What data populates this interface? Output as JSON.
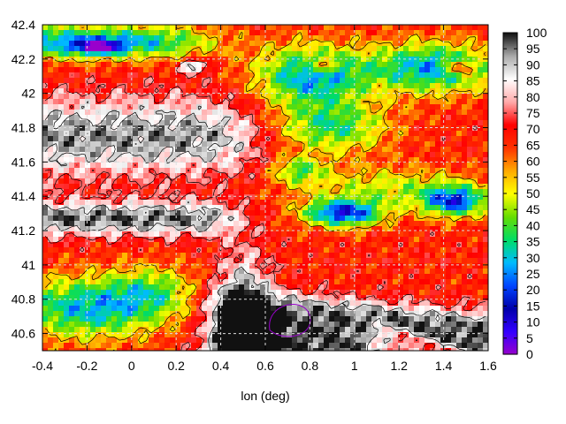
{
  "chart_data": {
    "type": "heatmap",
    "title": "",
    "xlabel": "lon (deg)",
    "ylabel": "",
    "xlim": [
      -0.4,
      1.6
    ],
    "ylim": [
      40.5,
      42.4
    ],
    "x_ticks": [
      "-0.4",
      "-0.2",
      "0",
      "0.2",
      "0.4",
      "0.6",
      "0.8",
      "1",
      "1.2",
      "1.4",
      "1.6"
    ],
    "y_ticks": [
      "40.6",
      "40.8",
      "41",
      "41.2",
      "41.4",
      "41.6",
      "41.8",
      "42",
      "42.2",
      "42.4"
    ],
    "grid": true,
    "colorbar": {
      "range": [
        0,
        100
      ],
      "ticks": [
        "0",
        "5",
        "10",
        "15",
        "20",
        "25",
        "30",
        "35",
        "40",
        "45",
        "50",
        "55",
        "60",
        "65",
        "70",
        "75",
        "80",
        "85",
        "90",
        "95",
        "100"
      ],
      "colors": [
        "#9900cc",
        "#3300ff",
        "#0000aa",
        "#0044ff",
        "#00bbff",
        "#00dd66",
        "#66dd00",
        "#ffff00",
        "#ffaa00",
        "#ff3300",
        "#ff0000",
        "#ffaaaa",
        "#ffffff",
        "#aaaaaa",
        "#111111"
      ]
    }
  }
}
